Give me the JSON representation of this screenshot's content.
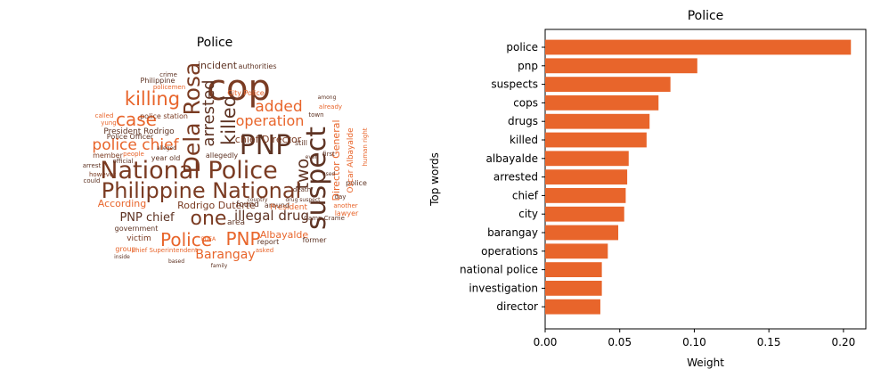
{
  "wordcloud": {
    "title": "Police",
    "words": [
      {
        "text": "cop",
        "color": "#7a3b22"
      },
      {
        "text": "PNP",
        "color": "#5e3323"
      },
      {
        "text": "National Police",
        "color": "#7a3b22"
      },
      {
        "text": "Philippine National",
        "color": "#7a3b22"
      },
      {
        "text": "suspect",
        "color": "#5e3323"
      },
      {
        "text": "Dela Rosa",
        "color": "#7a3b22"
      },
      {
        "text": "killing",
        "color": "#e8652b"
      },
      {
        "text": "case",
        "color": "#e8652b"
      },
      {
        "text": "killed",
        "color": "#5e3323"
      },
      {
        "text": "arrested",
        "color": "#5e3323"
      },
      {
        "text": "added",
        "color": "#e8652b"
      },
      {
        "text": "operation",
        "color": "#e8652b"
      },
      {
        "text": "police chief",
        "color": "#e8652b"
      },
      {
        "text": "one",
        "color": "#7a3b22"
      },
      {
        "text": "Police",
        "color": "#e8652b"
      },
      {
        "text": "PNP",
        "color": "#e8652b"
      },
      {
        "text": "illegal drug",
        "color": "#5e3323"
      },
      {
        "text": "Barangay",
        "color": "#e8652b"
      },
      {
        "text": "Albayalde",
        "color": "#e8652b"
      },
      {
        "text": "PNP chief",
        "color": "#5e3323"
      },
      {
        "text": "two",
        "color": "#5e3323"
      },
      {
        "text": "chief Director",
        "color": "#7a3b22"
      },
      {
        "text": "Director General",
        "color": "#e8652b"
      },
      {
        "text": "According",
        "color": "#e8652b"
      },
      {
        "text": "Rodrigo Duterte",
        "color": "#7a3b22"
      },
      {
        "text": "President Rodrigo",
        "color": "#5e3323"
      },
      {
        "text": "incident",
        "color": "#5e3323"
      },
      {
        "text": "authorities",
        "color": "#5e3323"
      },
      {
        "text": "police station",
        "color": "#7a3b22"
      },
      {
        "text": "Police Officer",
        "color": "#5e3323"
      },
      {
        "text": "member",
        "color": "#7a3b22"
      },
      {
        "text": "year old",
        "color": "#5e3323"
      },
      {
        "text": "allegedly",
        "color": "#5e3323"
      },
      {
        "text": "victim",
        "color": "#7a3b22"
      },
      {
        "text": "found",
        "color": "#5e3323"
      },
      {
        "text": "area",
        "color": "#5e3323"
      },
      {
        "text": "President",
        "color": "#e8652b"
      },
      {
        "text": "report",
        "color": "#5e3323"
      },
      {
        "text": "former",
        "color": "#5e3323"
      },
      {
        "text": "government",
        "color": "#5e3323"
      },
      {
        "text": "City Police",
        "color": "#e8652b"
      },
      {
        "text": "Philippine",
        "color": "#5e3323"
      },
      {
        "text": "policemen",
        "color": "#e8652b"
      },
      {
        "text": "crime",
        "color": "#5e3323"
      },
      {
        "text": "people",
        "color": "#e8652b"
      },
      {
        "text": "arrest",
        "color": "#5e3323"
      },
      {
        "text": "however",
        "color": "#7a3b22"
      },
      {
        "text": "Camp Crame",
        "color": "#5e3323"
      },
      {
        "text": "still",
        "color": "#5e3323"
      },
      {
        "text": "town",
        "color": "#5e3323"
      },
      {
        "text": "around",
        "color": "#5e3323"
      },
      {
        "text": "group",
        "color": "#e8652b"
      },
      {
        "text": "chief Superintendent",
        "color": "#e8652b"
      },
      {
        "text": "official",
        "color": "#5e3323"
      },
      {
        "text": "called",
        "color": "#e8652b"
      },
      {
        "text": "yung",
        "color": "#e8652b"
      },
      {
        "text": "could",
        "color": "#5e3323"
      },
      {
        "text": "lawyer",
        "color": "#e8652b"
      },
      {
        "text": "already",
        "color": "#e8652b"
      },
      {
        "text": "death",
        "color": "#5e3323"
      },
      {
        "text": "day",
        "color": "#5e3323"
      },
      {
        "text": "first",
        "color": "#5e3323"
      },
      {
        "text": "police",
        "color": "#5e3323"
      },
      {
        "text": "another",
        "color": "#e8652b"
      },
      {
        "text": "among",
        "color": "#5e3323"
      },
      {
        "text": "even",
        "color": "#5e3323"
      },
      {
        "text": "alleged",
        "color": "#5e3323"
      },
      {
        "text": "country",
        "color": "#5e3323"
      },
      {
        "text": "used",
        "color": "#5e3323"
      },
      {
        "text": "asked",
        "color": "#e8652b"
      },
      {
        "text": "family",
        "color": "#5e3323"
      },
      {
        "text": "based",
        "color": "#5e3323"
      },
      {
        "text": "inside",
        "color": "#5e3323"
      },
      {
        "text": "PDEA",
        "color": "#e8652b"
      },
      {
        "text": "drug suspect",
        "color": "#5e3323"
      },
      {
        "text": "Oscar Albayalde",
        "color": "#e8652b"
      },
      {
        "text": "human right",
        "color": "#e8652b"
      }
    ]
  },
  "chart_data": {
    "type": "bar",
    "orientation": "horizontal",
    "title": "Police",
    "xlabel": "Weight",
    "ylabel": "Top words",
    "color": "#e8652b",
    "xlim": [
      0,
      0.215
    ],
    "xticks": [
      "0.00",
      "0.05",
      "0.10",
      "0.15",
      "0.20"
    ],
    "categories": [
      "police",
      "pnp",
      "suspects",
      "cops",
      "drugs",
      "killed",
      "albayalde",
      "arrested",
      "chief",
      "city",
      "barangay",
      "operations",
      "national police",
      "investigation",
      "director"
    ],
    "values": [
      0.205,
      0.102,
      0.084,
      0.076,
      0.07,
      0.068,
      0.056,
      0.055,
      0.054,
      0.053,
      0.049,
      0.042,
      0.038,
      0.038,
      0.037
    ]
  }
}
